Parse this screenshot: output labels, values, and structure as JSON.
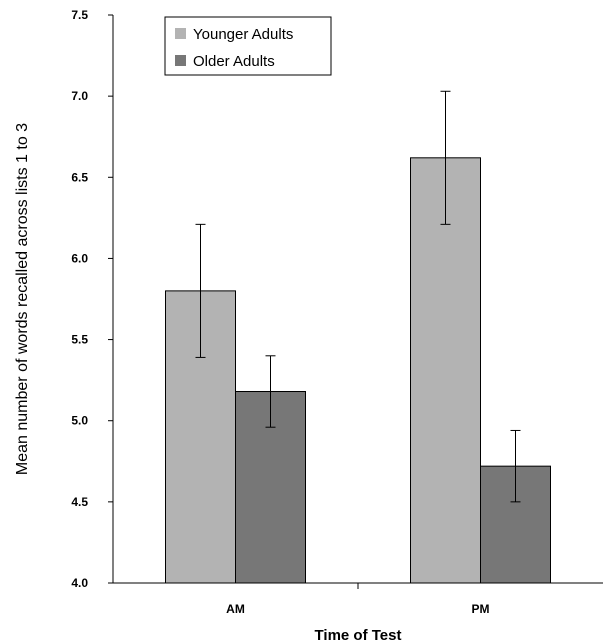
{
  "chart_data": {
    "type": "bar",
    "categories": [
      "AM",
      "PM"
    ],
    "series": [
      {
        "name": "Younger Adults",
        "color": "#b3b3b3",
        "values": [
          5.8,
          6.62
        ],
        "error": [
          0.41,
          0.41
        ]
      },
      {
        "name": "Older Adults",
        "color": "#777777",
        "values": [
          5.18,
          4.72
        ],
        "error": [
          0.22,
          0.22
        ]
      }
    ],
    "xlabel": "Time of Test",
    "ylabel": "Mean number of words recalled across lists 1 to 3",
    "ylim": [
      4.0,
      7.5
    ],
    "yticks": [
      "4.0",
      "4.5",
      "5.0",
      "5.5",
      "6.0",
      "6.5",
      "7.0",
      "7.5"
    ],
    "grid": false,
    "legend_position": "top-left"
  }
}
